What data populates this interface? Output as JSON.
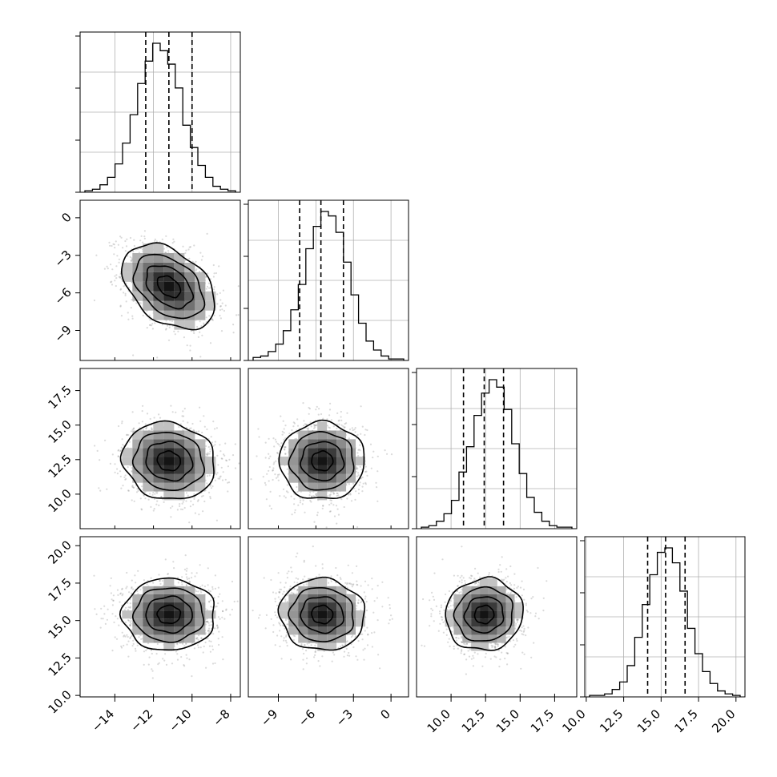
{
  "chart_data": {
    "type": "corner",
    "grid": true,
    "dimensions": [
      {
        "index": 0,
        "range": [
          -15.8,
          -7.5
        ],
        "ticks": [
          -14,
          -12,
          -10,
          -8
        ],
        "tick_labels": [
          "−14",
          "−12",
          "−10",
          "−8"
        ],
        "quantiles": [
          -12.4,
          -11.2,
          -10.0
        ],
        "hist_counts": [
          1,
          2,
          5,
          10,
          19,
          33,
          52,
          73,
          88,
          100,
          95,
          86,
          70,
          45,
          30,
          18,
          10,
          4,
          2,
          1
        ]
      },
      {
        "index": 1,
        "range": [
          -11.4,
          1.4
        ],
        "ticks": [
          -9,
          -6,
          -3,
          0
        ],
        "tick_labels": [
          "−9",
          "−6",
          "−3",
          "0"
        ],
        "quantiles": [
          -7.3,
          -5.6,
          -3.8
        ],
        "hist_counts": [
          2,
          3,
          6,
          11,
          20,
          34,
          51,
          75,
          90,
          100,
          97,
          86,
          66,
          44,
          25,
          13,
          7,
          3,
          1,
          1
        ]
      },
      {
        "index": 2,
        "range": [
          7.5,
          19.1
        ],
        "ticks": [
          10.0,
          12.5,
          15.0,
          17.5
        ],
        "tick_labels": [
          "10.0",
          "12.5",
          "15.0",
          "17.5"
        ],
        "quantiles": [
          10.9,
          12.4,
          13.8
        ],
        "hist_counts": [
          1,
          2,
          5,
          10,
          19,
          38,
          55,
          76,
          91,
          100,
          95,
          80,
          57,
          37,
          21,
          11,
          5,
          2,
          1,
          1
        ]
      },
      {
        "index": 3,
        "range": [
          9.9,
          20.6
        ],
        "ticks": [
          10.0,
          12.5,
          15.0,
          17.5,
          20.0
        ],
        "tick_labels": [
          "10.0",
          "12.5",
          "15.0",
          "17.5",
          "20.0"
        ],
        "quantiles": [
          14.1,
          15.3,
          16.6
        ],
        "hist_counts": [
          1,
          1,
          2,
          5,
          10,
          21,
          40,
          62,
          82,
          97,
          100,
          90,
          71,
          46,
          29,
          17,
          9,
          4,
          2,
          1
        ]
      }
    ],
    "pairs": [
      {
        "x_dim": 0,
        "y_dim": 1,
        "mean": [
          -11.2,
          -5.5
        ],
        "sd": [
          1.2,
          1.7
        ],
        "corr": -0.4
      },
      {
        "x_dim": 0,
        "y_dim": 2,
        "mean": [
          -11.2,
          12.4
        ],
        "sd": [
          1.2,
          1.4
        ],
        "corr": -0.1
      },
      {
        "x_dim": 1,
        "y_dim": 2,
        "mean": [
          -5.5,
          12.4
        ],
        "sd": [
          1.7,
          1.4
        ],
        "corr": 0.0
      },
      {
        "x_dim": 0,
        "y_dim": 3,
        "mean": [
          -11.2,
          15.4
        ],
        "sd": [
          1.2,
          1.2
        ],
        "corr": 0.0
      },
      {
        "x_dim": 1,
        "y_dim": 3,
        "mean": [
          -5.5,
          15.4
        ],
        "sd": [
          1.7,
          1.2
        ],
        "corr": -0.05
      },
      {
        "x_dim": 2,
        "y_dim": 3,
        "mean": [
          12.4,
          15.4
        ],
        "sd": [
          1.4,
          1.2
        ],
        "corr": 0.05
      }
    ],
    "contour_levels_sigma": [
      0.5,
      1.0,
      1.5,
      2.0
    ]
  }
}
